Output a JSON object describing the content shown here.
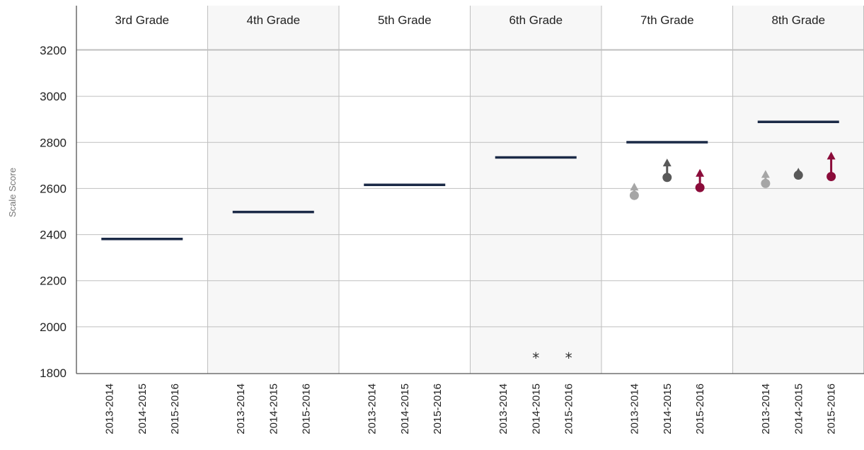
{
  "chart_data": {
    "type": "scatter",
    "ylabel": "Scale Score",
    "ylim": [
      1800,
      3300
    ],
    "yticks": [
      1800,
      2000,
      2200,
      2400,
      2600,
      2800,
      3000,
      3200
    ],
    "grid": true,
    "categories": [
      "2013-2014",
      "2014-2015",
      "2015-2016"
    ],
    "colors": {
      "2013-2014": "#a6a6a6",
      "2014-2015": "#595959",
      "2015-2016": "#8b0c3a",
      "standard_line": "#1b2a47",
      "gridline": "#bfbfbf",
      "shaded_panel": "#f7f7f7"
    },
    "panels": [
      {
        "title": "3rd Grade",
        "standard": 2381,
        "shaded": false,
        "points": [],
        "stars": []
      },
      {
        "title": "4th Grade",
        "standard": 2498,
        "shaded": true,
        "points": [],
        "stars": []
      },
      {
        "title": "5th Grade",
        "standard": 2616,
        "shaded": false,
        "points": [],
        "stars": []
      },
      {
        "title": "6th Grade",
        "standard": 2735,
        "shaded": true,
        "points": [],
        "stars": [
          {
            "year": "2014-2015",
            "symbol": "*"
          },
          {
            "year": "2015-2016",
            "symbol": "*"
          }
        ]
      },
      {
        "title": "7th Grade",
        "standard": 2801,
        "shaded": false,
        "points": [
          {
            "year": "2013-2014",
            "value": 2570,
            "growth_to": 2625
          },
          {
            "year": "2014-2015",
            "value": 2648,
            "growth_to": 2730
          },
          {
            "year": "2015-2016",
            "value": 2604,
            "growth_to": 2685
          }
        ],
        "stars": []
      },
      {
        "title": "8th Grade",
        "standard": 2889,
        "shaded": true,
        "points": [
          {
            "year": "2013-2014",
            "value": 2622,
            "growth_to": 2680
          },
          {
            "year": "2014-2015",
            "value": 2658,
            "growth_to": 2690
          },
          {
            "year": "2015-2016",
            "value": 2652,
            "growth_to": 2760
          }
        ],
        "stars": []
      }
    ]
  }
}
